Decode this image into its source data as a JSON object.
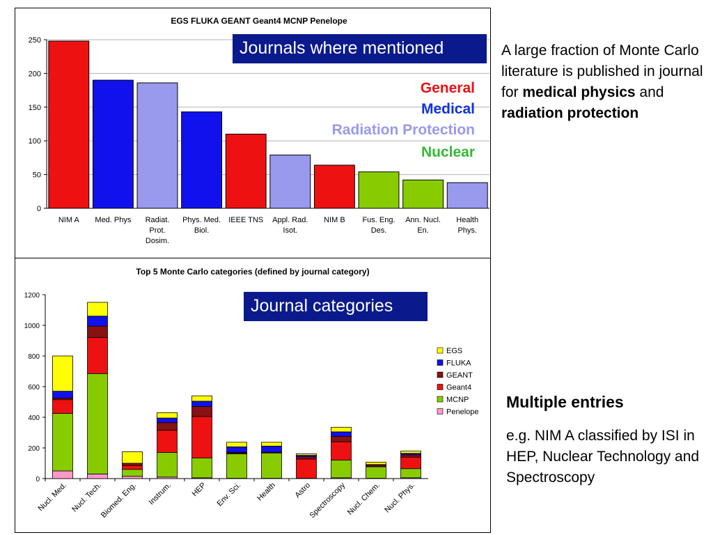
{
  "top_overlay": "Journals where mentioned",
  "legend_words": [
    {
      "label": "General",
      "color": "#ee1111"
    },
    {
      "label": "Medical",
      "color": "#1133dd"
    },
    {
      "label": "Radiation Protection",
      "color": "#9999ee"
    },
    {
      "label": "Nuclear",
      "color": "#33bb33"
    }
  ],
  "bottom_overlay": "Journal categories",
  "side_text": {
    "p1_a": "A large fraction of Monte Carlo literature is published in journal for ",
    "p1_b": "medical physics",
    "p1_c": " and ",
    "p1_d": "radiation protection",
    "heading": "Multiple entries",
    "p2": "e.g. NIM A classified by ISI in HEP, Nuclear Technology and Spectroscopy"
  },
  "chart_data": [
    {
      "type": "bar",
      "title": "EGS FLUKA GEANT Geant4 MCNP Penelope",
      "categories": [
        "NIM A",
        "Med. Phys",
        "Radiat. Prot. Dosim.",
        "Phys. Med. Biol.",
        "IEEE TNS",
        "Appl. Rad. Isot.",
        "NIM B",
        "Fus. Eng. Des.",
        "Ann. Nucl. En.",
        "Health Phys."
      ],
      "category_lines": [
        [
          "NIM A"
        ],
        [
          "Med. Phys"
        ],
        [
          "Radiat.",
          "Prot.",
          "Dosim."
        ],
        [
          "Phys. Med.",
          "Biol."
        ],
        [
          "IEEE TNS"
        ],
        [
          "Appl. Rad.",
          "Isot."
        ],
        [
          "NIM B"
        ],
        [
          "Fus. Eng.",
          "Des."
        ],
        [
          "Ann. Nucl.",
          "En."
        ],
        [
          "Health",
          "Phys."
        ]
      ],
      "values": [
        248,
        190,
        186,
        143,
        110,
        79,
        64,
        54,
        42,
        38
      ],
      "bar_colors": [
        "#ee1111",
        "#1111ee",
        "#9999ee",
        "#1111ee",
        "#ee1111",
        "#9999ee",
        "#ee1111",
        "#88cc00",
        "#88cc00",
        "#9999ee"
      ],
      "ylim": [
        0,
        250
      ],
      "yticks": [
        0,
        50,
        100,
        150,
        200,
        250
      ],
      "grid": true
    },
    {
      "type": "stacked-bar",
      "title": "Top 5 Monte Carlo categories (defined by journal category)",
      "categories": [
        "Nucl. Med.",
        "Nucl. Tech.",
        "Biomed. Eng.",
        "Instrum.",
        "HEP",
        "Env. Sci.",
        "Health",
        "Astro",
        "Spectroscopy",
        "Nucl. Chem.",
        "Nucl. Phys."
      ],
      "series": [
        {
          "name": "Penelope",
          "color": "#ff99cc",
          "values": [
            50,
            30,
            15,
            10,
            5,
            2,
            2,
            2,
            5,
            2,
            5
          ]
        },
        {
          "name": "MCNP",
          "color": "#88cc00",
          "values": [
            375,
            655,
            45,
            160,
            130,
            160,
            165,
            0,
            115,
            75,
            60
          ]
        },
        {
          "name": "Geant4",
          "color": "#ee1111",
          "values": [
            90,
            235,
            25,
            145,
            270,
            5,
            5,
            125,
            120,
            5,
            75
          ]
        },
        {
          "name": "GEANT",
          "color": "#881111",
          "values": [
            10,
            75,
            15,
            50,
            65,
            5,
            0,
            15,
            35,
            10,
            15
          ]
        },
        {
          "name": "FLUKA",
          "color": "#1111ee",
          "values": [
            45,
            65,
            0,
            30,
            35,
            35,
            40,
            10,
            30,
            0,
            10
          ]
        },
        {
          "name": "EGS",
          "color": "#ffff00",
          "values": [
            230,
            90,
            75,
            35,
            35,
            30,
            25,
            10,
            30,
            15,
            15
          ]
        }
      ],
      "ylim": [
        0,
        1200
      ],
      "yticks": [
        0,
        200,
        400,
        600,
        800,
        1000,
        1200
      ],
      "grid": false,
      "legend": "right"
    }
  ]
}
